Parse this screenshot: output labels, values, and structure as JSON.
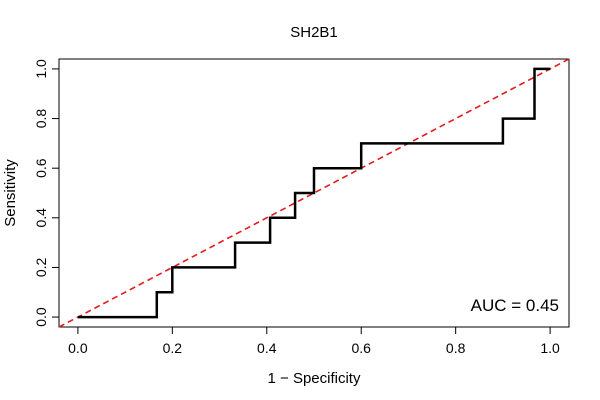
{
  "chart_data": {
    "type": "line",
    "title": "SH2B1",
    "xlabel": "1 − Specificity",
    "ylabel": "Sensitivity",
    "xlim": [
      -0.04,
      1.04
    ],
    "ylim": [
      -0.04,
      1.04
    ],
    "x_ticks": [
      0.0,
      0.2,
      0.4,
      0.6,
      0.8,
      1.0
    ],
    "x_tick_labels": [
      "0.0",
      "0.2",
      "0.4",
      "0.6",
      "0.8",
      "1.0"
    ],
    "y_ticks": [
      0.0,
      0.2,
      0.4,
      0.6,
      0.8,
      1.0
    ],
    "y_tick_labels": [
      "0.0",
      "0.2",
      "0.4",
      "0.6",
      "0.8",
      "1.0"
    ],
    "grid": false,
    "series": [
      {
        "style": "step",
        "color": "#000000",
        "x": [
          0.0,
          0.167,
          0.167,
          0.2,
          0.2,
          0.333,
          0.333,
          0.407,
          0.407,
          0.46,
          0.46,
          0.5,
          0.5,
          0.6,
          0.6,
          0.9,
          0.9,
          0.967,
          0.967,
          1.0
        ],
        "y": [
          0.0,
          0.0,
          0.1,
          0.1,
          0.2,
          0.2,
          0.3,
          0.3,
          0.4,
          0.4,
          0.5,
          0.5,
          0.6,
          0.6,
          0.7,
          0.7,
          0.8,
          0.8,
          1.0,
          1.0
        ]
      }
    ],
    "reference_line": {
      "color": "#e41a1c",
      "style": "dashed",
      "x": [
        -0.04,
        1.04
      ],
      "y": [
        -0.04,
        1.04
      ]
    },
    "annotations": [
      {
        "text": "AUC = 0.45",
        "position": "bottom-right"
      }
    ]
  }
}
